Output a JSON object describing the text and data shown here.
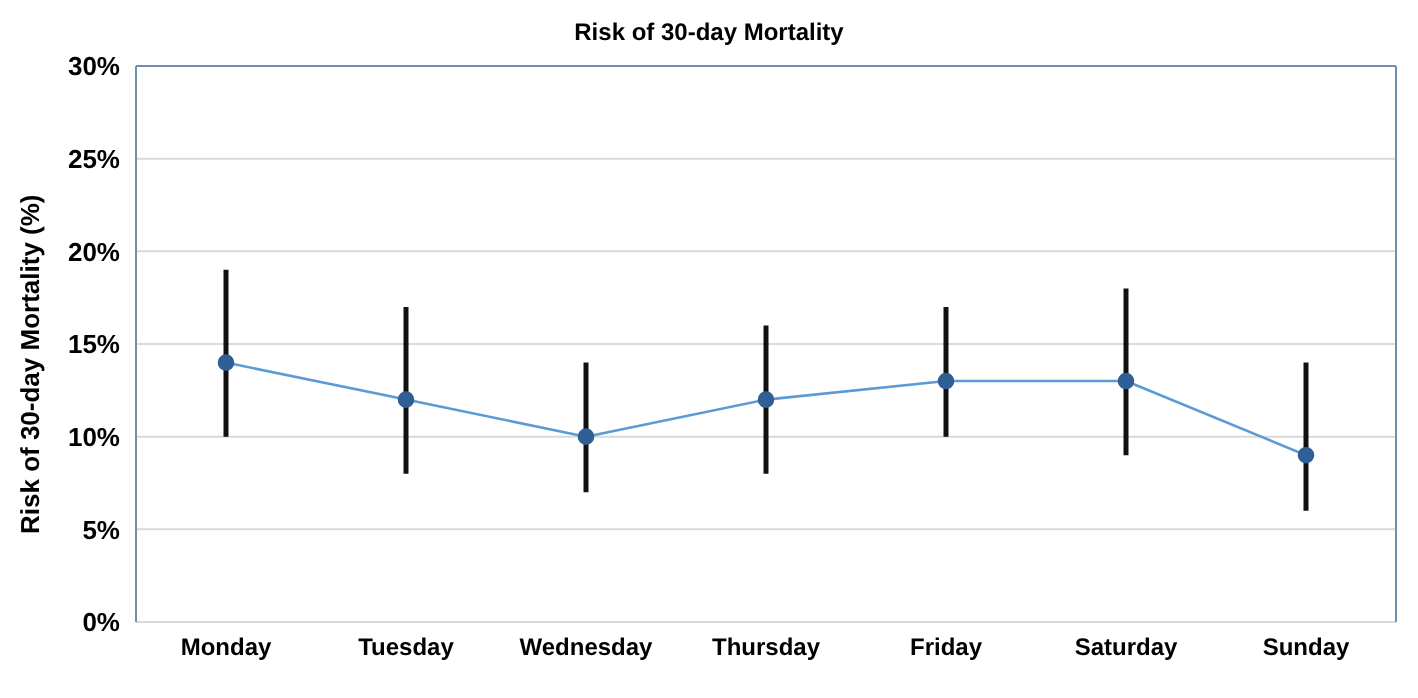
{
  "chart_data": {
    "type": "line",
    "title": "Risk of 30-day Mortality",
    "ylabel": "Risk of 30-day Mortality (%)",
    "categories": [
      "Monday",
      "Tuesday",
      "Wednesday",
      "Thursday",
      "Friday",
      "Saturday",
      "Sunday"
    ],
    "series": [
      {
        "color": "#5b9bd5",
        "values": [
          14,
          12,
          10,
          12,
          13,
          13,
          9
        ],
        "errors": [
          [
            10,
            19
          ],
          [
            8,
            17
          ],
          [
            7,
            14
          ],
          [
            8,
            16
          ],
          [
            10,
            17
          ],
          [
            9,
            18
          ],
          [
            6,
            14
          ]
        ]
      }
    ],
    "ylim": [
      0,
      30
    ],
    "yticks": [
      {
        "value": 0,
        "label": "0%"
      },
      {
        "value": 5,
        "label": "5%"
      },
      {
        "value": 10,
        "label": "10%"
      },
      {
        "value": 15,
        "label": "15%"
      },
      {
        "value": 20,
        "label": "20%"
      },
      {
        "value": 25,
        "label": "25%"
      },
      {
        "value": 30,
        "label": "30%"
      }
    ],
    "grid": "y",
    "marker": "circle",
    "line_style": "solid",
    "legend": false
  }
}
